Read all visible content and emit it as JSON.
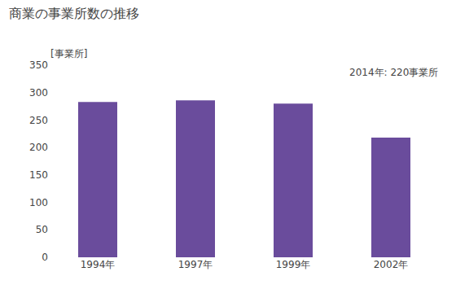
{
  "chart_data": {
    "type": "bar",
    "title": "商業の事業所数の推移",
    "ylabel": "[事業所]",
    "annotation": "2014年: 220事業所",
    "categories": [
      "1994年",
      "1997年",
      "1999年",
      "2002年"
    ],
    "values": [
      283,
      286,
      280,
      218
    ],
    "color": "#6a4c9c",
    "ylim": [
      0,
      350
    ],
    "yticks": [
      0,
      50,
      100,
      150,
      200,
      250,
      300,
      350
    ],
    "grid": false
  }
}
